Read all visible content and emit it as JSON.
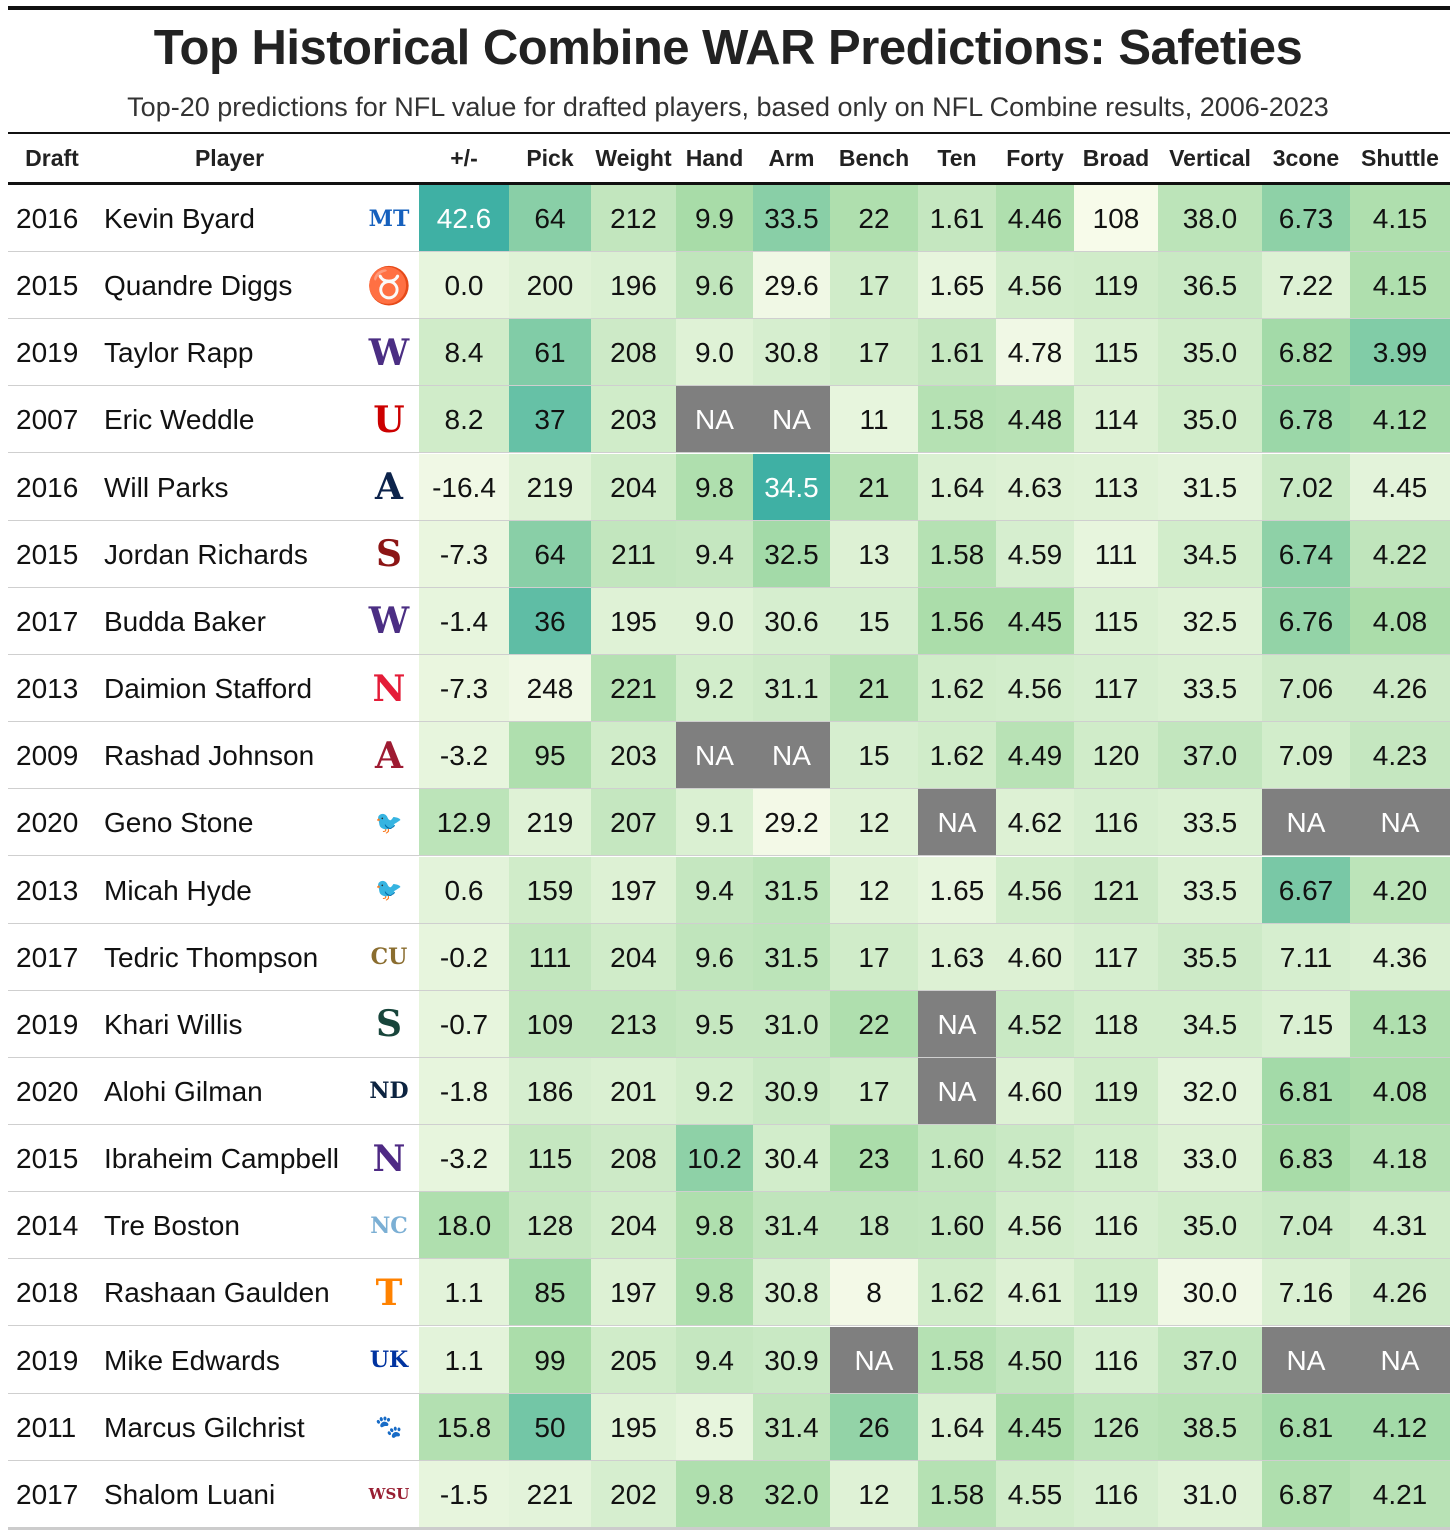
{
  "title": "Top Historical Combine WAR Predictions: Safeties",
  "subtitle": "Top-20 predictions for NFL value for drafted players, based only on NFL Combine results, 2006-2023",
  "chart_data": {
    "type": "table",
    "columns": [
      "Draft",
      "Player",
      "+/-",
      "Pick",
      "Weight",
      "Hand",
      "Arm",
      "Bench",
      "Ten",
      "Forty",
      "Broad",
      "Vertical",
      "3cone",
      "Shuttle"
    ],
    "colors": {
      "na": "#7f7f7f",
      "low": "#f7fbea",
      "mid": "#a8dca8",
      "high": "#3fb0a4",
      "text_light": "#ffffff",
      "text_dark": "#111111"
    },
    "rows": [
      {
        "draft": "2016",
        "player": "Kevin Byard",
        "logo": {
          "icon": "mtsu-logo",
          "glyph": "MT",
          "color": "#1560bd"
        },
        "values": [
          "42.6",
          "64",
          "212",
          "9.9",
          "33.5",
          "22",
          "1.61",
          "4.46",
          "108",
          "38.0",
          "6.73",
          "4.15"
        ]
      },
      {
        "draft": "2015",
        "player": "Quandre Diggs",
        "logo": {
          "icon": "texas-longhorn-logo",
          "glyph": "♉",
          "color": "#cc5500"
        },
        "values": [
          "0.0",
          "200",
          "196",
          "9.6",
          "29.6",
          "17",
          "1.65",
          "4.56",
          "119",
          "36.5",
          "7.22",
          "4.15"
        ]
      },
      {
        "draft": "2019",
        "player": "Taylor Rapp",
        "logo": {
          "icon": "washington-w-logo",
          "glyph": "W",
          "color": "#4b2e83"
        },
        "values": [
          "8.4",
          "61",
          "208",
          "9.0",
          "30.8",
          "17",
          "1.61",
          "4.78",
          "115",
          "35.0",
          "6.82",
          "3.99"
        ]
      },
      {
        "draft": "2007",
        "player": "Eric Weddle",
        "logo": {
          "icon": "utah-u-logo",
          "glyph": "U",
          "color": "#cc0000"
        },
        "values": [
          "8.2",
          "37",
          "203",
          "NA",
          "NA",
          "11",
          "1.58",
          "4.48",
          "114",
          "35.0",
          "6.78",
          "4.12"
        ]
      },
      {
        "draft": "2016",
        "player": "Will Parks",
        "logo": {
          "icon": "arizona-a-logo",
          "glyph": "A",
          "color": "#0c234b"
        },
        "values": [
          "-16.4",
          "219",
          "204",
          "9.8",
          "34.5",
          "21",
          "1.64",
          "4.63",
          "113",
          "31.5",
          "7.02",
          "4.45"
        ]
      },
      {
        "draft": "2015",
        "player": "Jordan Richards",
        "logo": {
          "icon": "stanford-s-logo",
          "glyph": "S",
          "color": "#8c1515"
        },
        "values": [
          "-7.3",
          "64",
          "211",
          "9.4",
          "32.5",
          "13",
          "1.58",
          "4.59",
          "111",
          "34.5",
          "6.74",
          "4.22"
        ]
      },
      {
        "draft": "2017",
        "player": "Budda Baker",
        "logo": {
          "icon": "washington-w-logo",
          "glyph": "W",
          "color": "#4b2e83"
        },
        "values": [
          "-1.4",
          "36",
          "195",
          "9.0",
          "30.6",
          "15",
          "1.56",
          "4.45",
          "115",
          "32.5",
          "6.76",
          "4.08"
        ]
      },
      {
        "draft": "2013",
        "player": "Daimion Stafford",
        "logo": {
          "icon": "nebraska-n-logo",
          "glyph": "N",
          "color": "#e41c38"
        },
        "values": [
          "-7.3",
          "248",
          "221",
          "9.2",
          "31.1",
          "21",
          "1.62",
          "4.56",
          "117",
          "33.5",
          "7.06",
          "4.26"
        ]
      },
      {
        "draft": "2009",
        "player": "Rashad Johnson",
        "logo": {
          "icon": "alabama-a-logo",
          "glyph": "A",
          "color": "#9e1b32"
        },
        "values": [
          "-3.2",
          "95",
          "203",
          "NA",
          "NA",
          "15",
          "1.62",
          "4.49",
          "120",
          "37.0",
          "7.09",
          "4.23"
        ]
      },
      {
        "draft": "2020",
        "player": "Geno Stone",
        "logo": {
          "icon": "iowa-hawk-logo",
          "glyph": "🐦",
          "color": "#111111"
        },
        "values": [
          "12.9",
          "219",
          "207",
          "9.1",
          "29.2",
          "12",
          "NA",
          "4.62",
          "116",
          "33.5",
          "NA",
          "NA"
        ]
      },
      {
        "draft": "2013",
        "player": "Micah Hyde",
        "logo": {
          "icon": "iowa-hawk-logo",
          "glyph": "🐦",
          "color": "#111111"
        },
        "values": [
          "0.6",
          "159",
          "197",
          "9.4",
          "31.5",
          "12",
          "1.65",
          "4.56",
          "121",
          "33.5",
          "6.67",
          "4.20"
        ]
      },
      {
        "draft": "2017",
        "player": "Tedric Thompson",
        "logo": {
          "icon": "colorado-buffalo-logo",
          "glyph": "CU",
          "color": "#8a6d2f"
        },
        "values": [
          "-0.2",
          "111",
          "204",
          "9.6",
          "31.5",
          "17",
          "1.63",
          "4.60",
          "117",
          "35.5",
          "7.11",
          "4.36"
        ]
      },
      {
        "draft": "2019",
        "player": "Khari Willis",
        "logo": {
          "icon": "michigan-state-spartan-logo",
          "glyph": "S",
          "color": "#18453b"
        },
        "values": [
          "-0.7",
          "109",
          "213",
          "9.5",
          "31.0",
          "22",
          "NA",
          "4.52",
          "118",
          "34.5",
          "7.15",
          "4.13"
        ]
      },
      {
        "draft": "2020",
        "player": "Alohi Gilman",
        "logo": {
          "icon": "notre-dame-nd-logo",
          "glyph": "ND",
          "color": "#0c2340"
        },
        "values": [
          "-1.8",
          "186",
          "201",
          "9.2",
          "30.9",
          "17",
          "NA",
          "4.60",
          "119",
          "32.0",
          "6.81",
          "4.08"
        ]
      },
      {
        "draft": "2015",
        "player": "Ibraheim Campbell",
        "logo": {
          "icon": "northwestern-n-logo",
          "glyph": "N",
          "color": "#4e2a84"
        },
        "values": [
          "-3.2",
          "115",
          "208",
          "10.2",
          "30.4",
          "23",
          "1.60",
          "4.52",
          "118",
          "33.0",
          "6.83",
          "4.18"
        ]
      },
      {
        "draft": "2014",
        "player": "Tre Boston",
        "logo": {
          "icon": "unc-nc-logo",
          "glyph": "NC",
          "color": "#7bafd4"
        },
        "values": [
          "18.0",
          "128",
          "204",
          "9.8",
          "31.4",
          "18",
          "1.60",
          "4.56",
          "116",
          "35.0",
          "7.04",
          "4.31"
        ]
      },
      {
        "draft": "2018",
        "player": "Rashaan Gaulden",
        "logo": {
          "icon": "tennessee-t-logo",
          "glyph": "T",
          "color": "#ff8200"
        },
        "values": [
          "1.1",
          "85",
          "197",
          "9.8",
          "30.8",
          "8",
          "1.62",
          "4.61",
          "119",
          "30.0",
          "7.16",
          "4.26"
        ]
      },
      {
        "draft": "2019",
        "player": "Mike Edwards",
        "logo": {
          "icon": "kentucky-uk-logo",
          "glyph": "UK",
          "color": "#0033a0"
        },
        "values": [
          "1.1",
          "99",
          "205",
          "9.4",
          "30.9",
          "NA",
          "1.58",
          "4.50",
          "116",
          "37.0",
          "NA",
          "NA"
        ]
      },
      {
        "draft": "2011",
        "player": "Marcus Gilchrist",
        "logo": {
          "icon": "clemson-paw-logo",
          "glyph": "🐾",
          "color": "#f56600"
        },
        "values": [
          "15.8",
          "50",
          "195",
          "8.5",
          "31.4",
          "26",
          "1.64",
          "4.45",
          "126",
          "38.5",
          "6.81",
          "4.12"
        ]
      },
      {
        "draft": "2017",
        "player": "Shalom Luani",
        "logo": {
          "icon": "washington-state-cougar-logo",
          "glyph": "WSU",
          "color": "#981e32"
        },
        "values": [
          "-1.5",
          "221",
          "202",
          "9.8",
          "32.0",
          "12",
          "1.58",
          "4.55",
          "116",
          "31.0",
          "6.87",
          "4.21"
        ]
      }
    ],
    "cell_shades": [
      [
        1.0,
        0.72,
        0.4,
        0.6,
        0.72,
        0.55,
        0.38,
        0.55,
        0.0,
        0.45,
        0.7,
        0.55
      ],
      [
        0.12,
        0.18,
        0.22,
        0.42,
        0.05,
        0.3,
        0.12,
        0.28,
        0.3,
        0.35,
        0.2,
        0.55
      ],
      [
        0.3,
        0.75,
        0.32,
        0.18,
        0.25,
        0.3,
        0.38,
        0.05,
        0.22,
        0.3,
        0.62,
        0.75
      ],
      [
        0.3,
        0.85,
        0.3,
        -1,
        -1,
        0.12,
        0.5,
        0.48,
        0.2,
        0.3,
        0.65,
        0.62
      ],
      [
        0.05,
        0.18,
        0.3,
        0.55,
        1.0,
        0.5,
        0.22,
        0.2,
        0.18,
        0.15,
        0.35,
        0.15
      ],
      [
        0.1,
        0.72,
        0.4,
        0.38,
        0.62,
        0.2,
        0.5,
        0.25,
        0.12,
        0.28,
        0.7,
        0.42
      ],
      [
        0.12,
        0.88,
        0.18,
        0.18,
        0.25,
        0.25,
        0.58,
        0.58,
        0.22,
        0.18,
        0.68,
        0.58
      ],
      [
        0.1,
        0.05,
        0.5,
        0.28,
        0.32,
        0.5,
        0.3,
        0.28,
        0.25,
        0.22,
        0.32,
        0.32
      ],
      [
        0.12,
        0.55,
        0.3,
        -1,
        -1,
        0.25,
        0.3,
        0.48,
        0.3,
        0.4,
        0.28,
        0.38
      ],
      [
        0.45,
        0.18,
        0.38,
        0.22,
        0.03,
        0.18,
        -1,
        0.2,
        0.25,
        0.22,
        -1,
        -1
      ],
      [
        0.15,
        0.3,
        0.2,
        0.38,
        0.45,
        0.18,
        0.12,
        0.28,
        0.32,
        0.22,
        0.78,
        0.45
      ],
      [
        0.12,
        0.4,
        0.3,
        0.42,
        0.45,
        0.3,
        0.2,
        0.2,
        0.25,
        0.32,
        0.25,
        0.22
      ],
      [
        0.12,
        0.42,
        0.42,
        0.38,
        0.38,
        0.55,
        -1,
        0.35,
        0.28,
        0.28,
        0.22,
        0.55
      ],
      [
        0.12,
        0.25,
        0.22,
        0.28,
        0.35,
        0.3,
        -1,
        0.2,
        0.3,
        0.15,
        0.62,
        0.58
      ],
      [
        0.12,
        0.38,
        0.32,
        0.7,
        0.28,
        0.58,
        0.4,
        0.35,
        0.28,
        0.2,
        0.6,
        0.5
      ],
      [
        0.55,
        0.38,
        0.3,
        0.55,
        0.42,
        0.42,
        0.4,
        0.28,
        0.25,
        0.3,
        0.35,
        0.3
      ],
      [
        0.15,
        0.62,
        0.2,
        0.55,
        0.25,
        0.03,
        0.3,
        0.2,
        0.3,
        0.05,
        0.22,
        0.32
      ],
      [
        0.15,
        0.58,
        0.3,
        0.38,
        0.35,
        -1,
        0.5,
        0.42,
        0.25,
        0.4,
        -1,
        -1
      ],
      [
        0.52,
        0.8,
        0.18,
        0.12,
        0.42,
        0.68,
        0.22,
        0.58,
        0.45,
        0.48,
        0.62,
        0.62
      ],
      [
        0.12,
        0.15,
        0.25,
        0.55,
        0.55,
        0.18,
        0.5,
        0.3,
        0.25,
        0.18,
        0.55,
        0.48
      ]
    ]
  }
}
